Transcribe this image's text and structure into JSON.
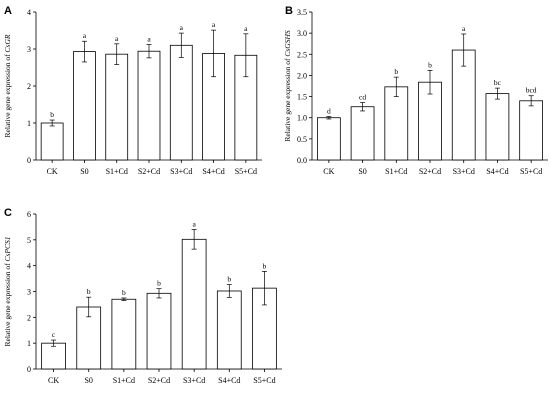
{
  "chart_data": [
    {
      "panel": "A",
      "type": "bar",
      "ylabel_prefix": "Relative gene expression of ",
      "ylabel_gene": "CsGR",
      "categories": [
        "CK",
        "S0",
        "S1+Cd",
        "S2+Cd",
        "S3+Cd",
        "S4+Cd",
        "S5+Cd"
      ],
      "values": [
        1.0,
        2.93,
        2.86,
        2.94,
        3.1,
        2.88,
        2.83
      ],
      "errors": [
        0.08,
        0.28,
        0.28,
        0.18,
        0.33,
        0.63,
        0.58
      ],
      "significance": [
        "b",
        "a",
        "a",
        "a",
        "a",
        "a",
        "a"
      ],
      "ylim": [
        0,
        4
      ],
      "yticks": [
        "0",
        "1",
        "2",
        "3",
        "4"
      ],
      "grid": false
    },
    {
      "panel": "B",
      "type": "bar",
      "ylabel_prefix": "Relative gene expression of ",
      "ylabel_gene": "CsGSHS",
      "categories": [
        "CK",
        "S0",
        "S1+Cd",
        "S2+Cd",
        "S3+Cd",
        "S4+Cd",
        "S5+Cd"
      ],
      "values": [
        1.0,
        1.26,
        1.73,
        1.84,
        2.6,
        1.57,
        1.4
      ],
      "errors": [
        0.03,
        0.1,
        0.23,
        0.28,
        0.38,
        0.13,
        0.12
      ],
      "significance": [
        "d",
        "cd",
        "b",
        "b",
        "a",
        "bc",
        "bcd"
      ],
      "ylim": [
        0,
        3.5
      ],
      "yticks": [
        "0.0",
        "0.5",
        "1.0",
        "1.5",
        "2.0",
        "2.5",
        "3.0",
        "3.5"
      ],
      "grid": false
    },
    {
      "panel": "C",
      "type": "bar",
      "ylabel_prefix": "Relative gene expression of ",
      "ylabel_gene": "CsPCS1",
      "categories": [
        "CK",
        "S0",
        "S1+Cd",
        "S2+Cd",
        "S3+Cd",
        "S4+Cd",
        "S5+Cd"
      ],
      "values": [
        1.0,
        2.4,
        2.7,
        2.93,
        5.02,
        3.02,
        3.13
      ],
      "errors": [
        0.12,
        0.38,
        0.05,
        0.18,
        0.38,
        0.25,
        0.65
      ],
      "significance": [
        "c",
        "b",
        "b",
        "b",
        "a",
        "b",
        "b"
      ],
      "ylim": [
        0,
        6
      ],
      "yticks": [
        "0",
        "1",
        "2",
        "3",
        "4",
        "5",
        "6"
      ],
      "grid": false
    }
  ]
}
